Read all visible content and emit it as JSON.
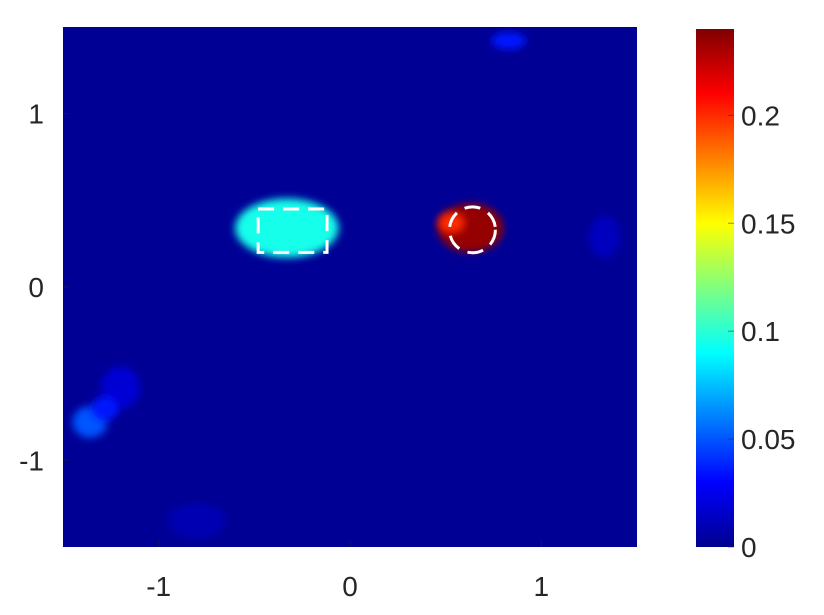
{
  "chart_data": {
    "type": "heatmap",
    "title": "",
    "xlabel": "",
    "ylabel": "",
    "xlim": [
      -1.5,
      1.5
    ],
    "ylim": [
      -1.5,
      1.5
    ],
    "xticks": [
      -1,
      0,
      1
    ],
    "yticks": [
      -1,
      0,
      1
    ],
    "xtick_labels": [
      "-1",
      "0",
      "1"
    ],
    "ytick_labels": [
      "-1",
      "0",
      "1"
    ],
    "colormap": "jet",
    "clim": [
      0,
      0.24
    ],
    "background_value": 0.005,
    "colorbar": {
      "ticks": [
        0,
        0.05,
        0.1,
        0.15,
        0.2
      ],
      "tick_labels": [
        "0",
        "0.05",
        "0.1",
        "0.15",
        "0.2"
      ],
      "placement": "right"
    },
    "regions": [
      {
        "shape": "ellipse",
        "cx": -0.33,
        "cy": 0.34,
        "rx": 0.27,
        "ry": 0.17,
        "value": 0.095
      },
      {
        "shape": "ellipse",
        "cx": 0.63,
        "cy": 0.34,
        "rx": 0.17,
        "ry": 0.14,
        "value": 0.235
      },
      {
        "shape": "ellipse",
        "cx": 0.53,
        "cy": 0.37,
        "rx": 0.07,
        "ry": 0.06,
        "value": 0.2
      },
      {
        "shape": "ellipse",
        "cx": 0.83,
        "cy": 1.42,
        "rx": 0.09,
        "ry": 0.05,
        "value": 0.035
      },
      {
        "shape": "ellipse",
        "cx": -1.36,
        "cy": -0.78,
        "rx": 0.09,
        "ry": 0.09,
        "value": 0.05
      },
      {
        "shape": "ellipse",
        "cx": -1.2,
        "cy": -0.58,
        "rx": 0.1,
        "ry": 0.12,
        "value": 0.02
      },
      {
        "shape": "ellipse",
        "cx": -1.28,
        "cy": -0.7,
        "rx": 0.07,
        "ry": 0.07,
        "value": 0.035
      },
      {
        "shape": "ellipse",
        "cx": 1.33,
        "cy": 0.29,
        "rx": 0.08,
        "ry": 0.12,
        "value": 0.015
      },
      {
        "shape": "ellipse",
        "cx": -0.8,
        "cy": -1.35,
        "rx": 0.15,
        "ry": 0.1,
        "value": 0.012
      }
    ],
    "annotations": [
      {
        "shape": "rect",
        "x0": -0.48,
        "x1": -0.12,
        "y0": 0.2,
        "y1": 0.45,
        "style": "white-dashed"
      },
      {
        "shape": "circle",
        "cx": 0.64,
        "cy": 0.33,
        "r": 0.12,
        "style": "white-dashed"
      }
    ]
  }
}
